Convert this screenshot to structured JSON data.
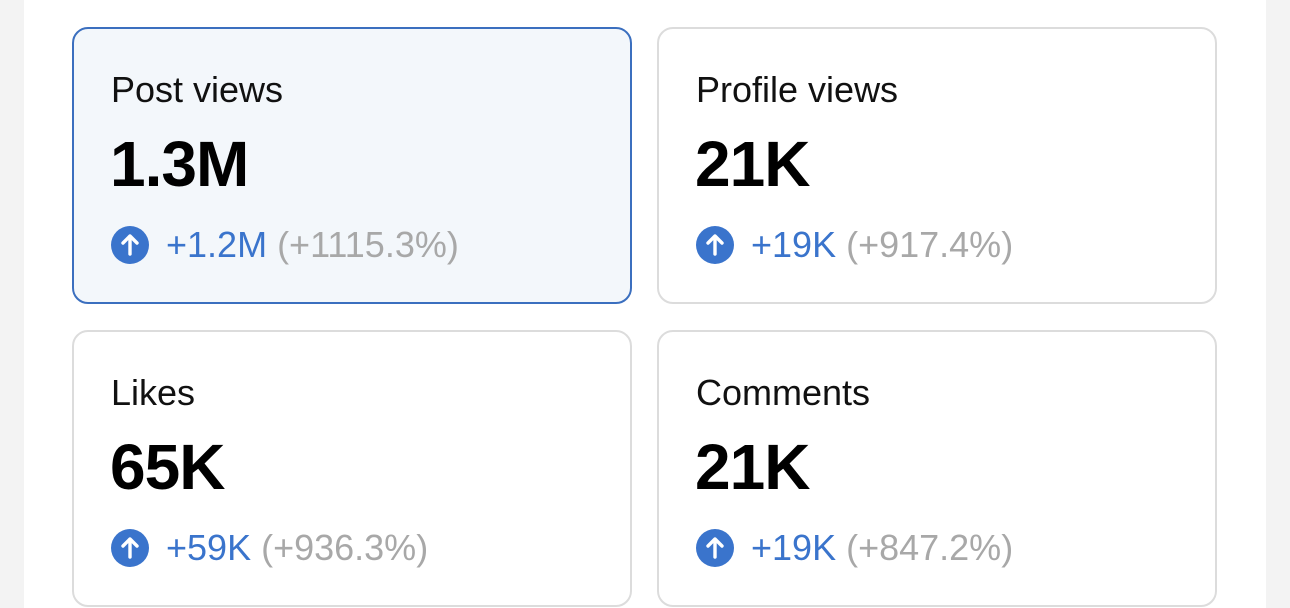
{
  "cards": [
    {
      "title": "Post views",
      "value": "1.3M",
      "change": "+1.2M",
      "percent": "(+1115.3%)"
    },
    {
      "title": "Profile views",
      "value": "21K",
      "change": "+19K",
      "percent": "(+917.4%)"
    },
    {
      "title": "Likes",
      "value": "65K",
      "change": "+59K",
      "percent": "(+936.3%)"
    },
    {
      "title": "Comments",
      "value": "21K",
      "change": "+19K",
      "percent": "(+847.2%)"
    }
  ]
}
